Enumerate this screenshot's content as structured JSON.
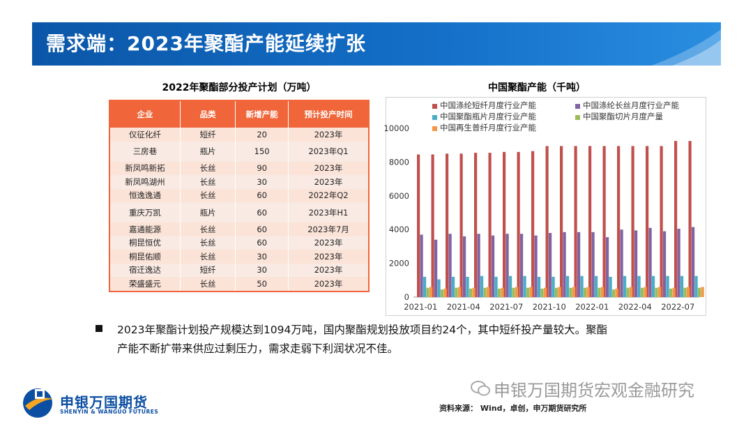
{
  "header": {
    "title": "需求端：2023年聚酯产能延续扩张"
  },
  "table": {
    "title": "2022年聚酯部分投产计划（万吨）",
    "columns": [
      "企业",
      "品类",
      "新增产能",
      "预计投产时间"
    ],
    "rows": [
      [
        "仪征化纤",
        "短纤",
        "20",
        "2023年"
      ],
      [
        "三房巷",
        "瓶片",
        "150",
        "2023年Q1"
      ],
      [
        "新凤鸣新拓",
        "长丝",
        "90",
        "2023年"
      ],
      [
        "新凤鸣湖州",
        "长丝",
        "30",
        "2023年"
      ],
      [
        "恒逸逸通",
        "长丝",
        "60",
        "2022年Q2"
      ],
      [
        "重庆万凯",
        "瓶片",
        "60",
        "2023年H1"
      ],
      [
        "嘉通能源",
        "长丝",
        "60",
        "2023年7月"
      ],
      [
        "桐昆恒优",
        "长丝",
        "60",
        "2023年"
      ],
      [
        "桐昆佑顺",
        "长丝",
        "30",
        "2023年"
      ],
      [
        "宿迁逸达",
        "短纤",
        "30",
        "2023年"
      ],
      [
        "荣盛盛元",
        "长丝",
        "50",
        "2023年"
      ]
    ],
    "tall_rows": [
      1,
      5
    ]
  },
  "chart_data": {
    "type": "bar",
    "title": "中国聚酯产能（千吨）",
    "categories": [
      "2021-01",
      "2021-02",
      "2021-03",
      "2021-04",
      "2021-05",
      "2021-06",
      "2021-07",
      "2021-08",
      "2021-09",
      "2021-10",
      "2021-11",
      "2021-12",
      "2022-01",
      "2022-02",
      "2022-03",
      "2022-04",
      "2022-05",
      "2022-06",
      "2022-07",
      "2022-08"
    ],
    "x_tick_labels": [
      "2021-01",
      "2021-04",
      "2021-07",
      "2021-10",
      "2022-01",
      "2022-04",
      "2022-07"
    ],
    "ylim": [
      0,
      10000
    ],
    "y_ticks": [
      0,
      2000,
      4000,
      6000,
      8000,
      10000
    ],
    "legend_position": "top",
    "series": [
      {
        "name": "中国涤纶短纤月度行业产能",
        "color": "#c0504d",
        "values": [
          8450,
          8450,
          8500,
          8500,
          8550,
          8550,
          8600,
          8600,
          8650,
          8950,
          8950,
          8950,
          8950,
          8950,
          8950,
          8950,
          8950,
          8950,
          9250,
          9250
        ]
      },
      {
        "name": "中国涤纶长丝月度行业产能",
        "color": "#8064a2",
        "values": [
          3700,
          3400,
          3750,
          3600,
          3750,
          3650,
          3750,
          3750,
          3650,
          3800,
          3850,
          3850,
          3850,
          3550,
          4000,
          3950,
          4100,
          3900,
          4050,
          4150
        ]
      },
      {
        "name": "中国聚酯瓶片月度行业产能",
        "color": "#4bacc6",
        "values": [
          1200,
          1050,
          1200,
          1200,
          1250,
          1200,
          1250,
          1250,
          1200,
          1200,
          1250,
          1250,
          1250,
          1200,
          1250,
          1250,
          1250,
          1250,
          1250,
          1250
        ]
      },
      {
        "name": "中国聚酯切片月度产量",
        "color": "#9bbb59",
        "values": [
          550,
          450,
          550,
          500,
          550,
          500,
          550,
          550,
          500,
          550,
          550,
          550,
          550,
          450,
          550,
          550,
          550,
          500,
          550,
          550
        ]
      },
      {
        "name": "中国再生普纤月度行业产能",
        "color": "#f79646",
        "values": [
          600,
          500,
          600,
          550,
          600,
          550,
          600,
          600,
          550,
          600,
          600,
          600,
          600,
          500,
          600,
          600,
          600,
          550,
          600,
          600
        ]
      }
    ]
  },
  "summary": {
    "line1": "2023年聚酯计划投产规模达到1094万吨，国内聚酯规划投放项目约24个，其中短纤投产量较大。聚酯",
    "line2": "产能不断扩带来供应过剩压力，需求走弱下利润状况不佳。"
  },
  "footer": {
    "logo_cn": "申银万国期货",
    "logo_en": "SHENYIN & WANGUO FUTURES",
    "watermark": "申银万国期货宏观金融研究",
    "source": "资料来源： Wind，卓创，申万期货研究所"
  }
}
